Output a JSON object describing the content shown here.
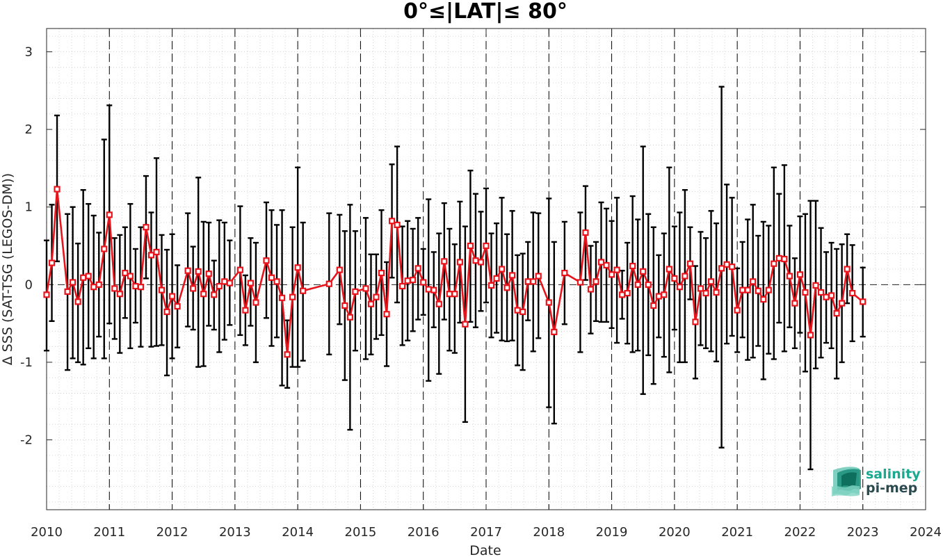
{
  "chart_data": {
    "type": "line",
    "title": "0°≤|LAT|≤ 80°",
    "xlabel": "Date",
    "ylabel": "Δ SSS (SAT-TSG (LEGOS-DM))",
    "xlim": [
      "2010-01",
      "2024-01"
    ],
    "ylim": [
      -2.9,
      3.3
    ],
    "x_ticks": [
      "2010",
      "2011",
      "2012",
      "2013",
      "2014",
      "2015",
      "2016",
      "2017",
      "2018",
      "2019",
      "2020",
      "2021",
      "2022",
      "2023",
      "2024"
    ],
    "y_ticks": [
      "3",
      "2",
      "1",
      "0",
      "-1",
      "-2"
    ],
    "y_tick_values": [
      3,
      2,
      1,
      0,
      -1,
      -2
    ],
    "grid": true,
    "year_separators": [
      "2011",
      "2012",
      "2013",
      "2014",
      "2015",
      "2016",
      "2017",
      "2018",
      "2019",
      "2020",
      "2021",
      "2022",
      "2023"
    ],
    "zero_line": true,
    "series": [
      {
        "color": "#e8141c",
        "errorbar_color": "#000000",
        "marker": "square",
        "points": [
          {
            "x": "2010-01",
            "y": -0.13,
            "lo": -0.85,
            "hi": 0.57
          },
          {
            "x": "2010-02",
            "y": 0.28,
            "lo": -0.47,
            "hi": 1.03
          },
          {
            "x": "2010-03",
            "y": 1.23,
            "lo": 0.3,
            "hi": 2.18
          },
          {
            "x": "2010-05",
            "y": -0.09,
            "lo": -1.1,
            "hi": 0.91
          },
          {
            "x": "2010-06",
            "y": 0.03,
            "lo": -0.95,
            "hi": 1.0
          },
          {
            "x": "2010-07",
            "y": -0.22,
            "lo": -1.0,
            "hi": 0.53
          },
          {
            "x": "2010-08",
            "y": 0.09,
            "lo": -1.03,
            "hi": 1.22
          },
          {
            "x": "2010-09",
            "y": 0.11,
            "lo": -0.82,
            "hi": 1.04
          },
          {
            "x": "2010-10",
            "y": -0.03,
            "lo": -0.95,
            "hi": 0.89
          },
          {
            "x": "2010-11",
            "y": 0.0,
            "lo": -0.67,
            "hi": 0.67
          },
          {
            "x": "2010-12",
            "y": 0.46,
            "lo": -0.95,
            "hi": 1.87
          },
          {
            "x": "2011-01",
            "y": 0.9,
            "lo": -0.5,
            "hi": 2.31
          },
          {
            "x": "2011-02",
            "y": -0.05,
            "lo": -0.7,
            "hi": 0.6
          },
          {
            "x": "2011-03",
            "y": -0.12,
            "lo": -0.88,
            "hi": 0.64
          },
          {
            "x": "2011-04",
            "y": 0.15,
            "lo": -0.43,
            "hi": 0.74
          },
          {
            "x": "2011-05",
            "y": 0.11,
            "lo": -0.82,
            "hi": 1.04
          },
          {
            "x": "2011-06",
            "y": -0.02,
            "lo": -0.49,
            "hi": 0.46
          },
          {
            "x": "2011-07",
            "y": -0.03,
            "lo": -0.8,
            "hi": 0.74
          },
          {
            "x": "2011-08",
            "y": 0.74,
            "lo": 0.08,
            "hi": 1.4
          },
          {
            "x": "2011-09",
            "y": 0.38,
            "lo": -0.8,
            "hi": 0.93
          },
          {
            "x": "2011-10",
            "y": 0.42,
            "lo": -0.79,
            "hi": 1.63
          },
          {
            "x": "2011-11",
            "y": -0.07,
            "lo": -0.78,
            "hi": 0.64
          },
          {
            "x": "2011-12",
            "y": -0.35,
            "lo": -1.17,
            "hi": 0.45
          },
          {
            "x": "2012-01",
            "y": -0.15,
            "lo": -0.95,
            "hi": 0.65
          },
          {
            "x": "2012-02",
            "y": -0.28,
            "lo": -0.81,
            "hi": 0.25
          },
          {
            "x": "2012-04",
            "y": 0.18,
            "lo": -0.54,
            "hi": 0.92
          },
          {
            "x": "2012-05",
            "y": -0.05,
            "lo": -0.58,
            "hi": 0.49
          },
          {
            "x": "2012-06",
            "y": 0.17,
            "lo": -1.06,
            "hi": 1.38
          },
          {
            "x": "2012-07",
            "y": -0.12,
            "lo": -1.05,
            "hi": 0.81
          },
          {
            "x": "2012-08",
            "y": 0.14,
            "lo": -0.53,
            "hi": 0.8
          },
          {
            "x": "2012-09",
            "y": -0.13,
            "lo": -0.58,
            "hi": 0.31
          },
          {
            "x": "2012-10",
            "y": -0.02,
            "lo": -0.87,
            "hi": 0.83
          },
          {
            "x": "2012-11",
            "y": 0.04,
            "lo": -0.71,
            "hi": 0.8
          },
          {
            "x": "2012-12",
            "y": 0.02,
            "lo": -0.52,
            "hi": 0.57
          },
          {
            "x": "2013-02",
            "y": 0.19,
            "lo": -0.65,
            "hi": 1.01
          },
          {
            "x": "2013-03",
            "y": -0.33,
            "lo": -0.78,
            "hi": 0.12
          },
          {
            "x": "2013-04",
            "y": 0.02,
            "lo": -0.53,
            "hi": 0.6
          },
          {
            "x": "2013-05",
            "y": -0.23,
            "lo": -1.0,
            "hi": 0.54
          },
          {
            "x": "2013-07",
            "y": 0.31,
            "lo": -0.43,
            "hi": 1.06
          },
          {
            "x": "2013-08",
            "y": 0.09,
            "lo": -0.79,
            "hi": 0.96
          },
          {
            "x": "2013-09",
            "y": 0.04,
            "lo": -0.68,
            "hi": 0.77
          },
          {
            "x": "2013-10",
            "y": -0.17,
            "lo": -1.3,
            "hi": 0.96
          },
          {
            "x": "2013-11",
            "y": -0.9,
            "lo": -1.33,
            "hi": -0.46
          },
          {
            "x": "2013-12",
            "y": -0.16,
            "lo": -1.06,
            "hi": 0.74
          },
          {
            "x": "2014-01",
            "y": 0.22,
            "lo": -1.06,
            "hi": 1.51
          },
          {
            "x": "2014-02",
            "y": -0.08,
            "lo": -0.98,
            "hi": 0.8
          },
          {
            "x": "2014-07",
            "y": 0.01,
            "lo": -0.9,
            "hi": 0.92
          },
          {
            "x": "2014-09",
            "y": 0.19,
            "lo": -0.51,
            "hi": 0.9
          },
          {
            "x": "2014-10",
            "y": -0.27,
            "lo": -1.23,
            "hi": 0.69
          },
          {
            "x": "2014-11",
            "y": -0.42,
            "lo": -1.87,
            "hi": 1.03
          },
          {
            "x": "2014-12",
            "y": -0.09,
            "lo": -0.85,
            "hi": 0.69
          },
          {
            "x": "2015-02",
            "y": -0.05,
            "lo": -0.96,
            "hi": 0.86
          },
          {
            "x": "2015-03",
            "y": -0.25,
            "lo": -0.9,
            "hi": 0.39
          },
          {
            "x": "2015-04",
            "y": -0.16,
            "lo": -0.7,
            "hi": 0.39
          },
          {
            "x": "2015-05",
            "y": 0.15,
            "lo": -0.65,
            "hi": 0.96
          },
          {
            "x": "2015-06",
            "y": -0.38,
            "lo": -1.05,
            "hi": 0.29
          },
          {
            "x": "2015-07",
            "y": 0.82,
            "lo": 0.09,
            "hi": 1.55
          },
          {
            "x": "2015-08",
            "y": 0.77,
            "lo": -0.23,
            "hi": 1.78
          },
          {
            "x": "2015-09",
            "y": -0.02,
            "lo": -0.78,
            "hi": 0.75
          },
          {
            "x": "2015-10",
            "y": 0.05,
            "lo": -0.72,
            "hi": 0.82
          },
          {
            "x": "2015-11",
            "y": 0.06,
            "lo": -0.6,
            "hi": 0.72
          },
          {
            "x": "2015-12",
            "y": 0.21,
            "lo": -0.45,
            "hi": 0.86
          },
          {
            "x": "2016-01",
            "y": 0.03,
            "lo": -0.39,
            "hi": 0.46
          },
          {
            "x": "2016-02",
            "y": -0.06,
            "lo": -1.24,
            "hi": 1.1
          },
          {
            "x": "2016-03",
            "y": -0.07,
            "lo": -0.55,
            "hi": 0.42
          },
          {
            "x": "2016-04",
            "y": -0.25,
            "lo": -1.15,
            "hi": 0.66
          },
          {
            "x": "2016-05",
            "y": 0.3,
            "lo": -0.45,
            "hi": 1.05
          },
          {
            "x": "2016-06",
            "y": -0.12,
            "lo": -0.85,
            "hi": 0.72
          },
          {
            "x": "2016-07",
            "y": -0.12,
            "lo": -0.88,
            "hi": 0.52
          },
          {
            "x": "2016-08",
            "y": 0.29,
            "lo": -0.49,
            "hi": 1.07
          },
          {
            "x": "2016-09",
            "y": -0.51,
            "lo": -1.77,
            "hi": 0.75
          },
          {
            "x": "2016-10",
            "y": 0.5,
            "lo": -0.48,
            "hi": 1.47
          },
          {
            "x": "2016-11",
            "y": 0.31,
            "lo": -0.55,
            "hi": 1.17
          },
          {
            "x": "2016-12",
            "y": 0.29,
            "lo": -0.34,
            "hi": 0.94
          },
          {
            "x": "2017-01",
            "y": 0.5,
            "lo": -0.23,
            "hi": 1.24
          },
          {
            "x": "2017-02",
            "y": -0.01,
            "lo": -0.68,
            "hi": 0.66
          },
          {
            "x": "2017-03",
            "y": 0.08,
            "lo": -0.62,
            "hi": 0.79
          },
          {
            "x": "2017-04",
            "y": 0.2,
            "lo": -0.72,
            "hi": 1.12
          },
          {
            "x": "2017-05",
            "y": -0.04,
            "lo": -0.73,
            "hi": 0.65
          },
          {
            "x": "2017-06",
            "y": 0.12,
            "lo": -0.72,
            "hi": 0.95
          },
          {
            "x": "2017-07",
            "y": -0.33,
            "lo": -1.04,
            "hi": 0.38
          },
          {
            "x": "2017-08",
            "y": -0.35,
            "lo": -1.1,
            "hi": 0.4
          },
          {
            "x": "2017-09",
            "y": 0.04,
            "lo": -0.46,
            "hi": 0.55
          },
          {
            "x": "2017-10",
            "y": 0.04,
            "lo": -0.86,
            "hi": 0.93
          },
          {
            "x": "2017-11",
            "y": 0.11,
            "lo": -0.69,
            "hi": 0.92
          },
          {
            "x": "2018-01",
            "y": -0.23,
            "lo": -1.58,
            "hi": 1.11
          },
          {
            "x": "2018-02",
            "y": -0.61,
            "lo": -1.79,
            "hi": 0.55
          },
          {
            "x": "2018-04",
            "y": 0.15,
            "lo": -0.51,
            "hi": 0.81
          },
          {
            "x": "2018-07",
            "y": 0.03,
            "lo": -0.87,
            "hi": 0.93
          },
          {
            "x": "2018-08",
            "y": 0.67,
            "lo": 0.06,
            "hi": 1.27
          },
          {
            "x": "2018-09",
            "y": -0.06,
            "lo": -0.63,
            "hi": 0.5
          },
          {
            "x": "2018-10",
            "y": 0.04,
            "lo": -0.47,
            "hi": 0.55
          },
          {
            "x": "2018-11",
            "y": 0.29,
            "lo": -0.48,
            "hi": 1.06
          },
          {
            "x": "2018-12",
            "y": 0.25,
            "lo": -0.48,
            "hi": 0.98
          },
          {
            "x": "2019-01",
            "y": 0.13,
            "lo": -0.56,
            "hi": 0.82
          },
          {
            "x": "2019-02",
            "y": 0.19,
            "lo": -0.75,
            "hi": 1.12
          },
          {
            "x": "2019-03",
            "y": -0.13,
            "lo": -0.44,
            "hi": 0.18
          },
          {
            "x": "2019-04",
            "y": -0.11,
            "lo": -0.76,
            "hi": 0.54
          },
          {
            "x": "2019-05",
            "y": 0.24,
            "lo": -0.87,
            "hi": 1.14
          },
          {
            "x": "2019-06",
            "y": 0.0,
            "lo": -0.85,
            "hi": 0.84
          },
          {
            "x": "2019-07",
            "y": 0.17,
            "lo": -1.41,
            "hi": 1.78
          },
          {
            "x": "2019-08",
            "y": 0.0,
            "lo": -0.91,
            "hi": 0.91
          },
          {
            "x": "2019-09",
            "y": -0.27,
            "lo": -1.28,
            "hi": 0.74
          },
          {
            "x": "2019-10",
            "y": -0.15,
            "lo": -0.68,
            "hi": 0.38
          },
          {
            "x": "2019-11",
            "y": -0.13,
            "lo": -0.93,
            "hi": 0.66
          },
          {
            "x": "2019-12",
            "y": 0.2,
            "lo": -1.13,
            "hi": 1.51
          },
          {
            "x": "2020-01",
            "y": 0.08,
            "lo": -0.58,
            "hi": 0.75
          },
          {
            "x": "2020-02",
            "y": -0.03,
            "lo": -1.0,
            "hi": 0.93
          },
          {
            "x": "2020-03",
            "y": 0.11,
            "lo": -1.0,
            "hi": 1.22
          },
          {
            "x": "2020-04",
            "y": 0.27,
            "lo": -0.19,
            "hi": 0.74
          },
          {
            "x": "2020-05",
            "y": -0.48,
            "lo": -1.21,
            "hi": 0.24
          },
          {
            "x": "2020-06",
            "y": -0.05,
            "lo": -0.78,
            "hi": 0.68
          },
          {
            "x": "2020-07",
            "y": -0.11,
            "lo": -0.82,
            "hi": 0.6
          },
          {
            "x": "2020-08",
            "y": 0.04,
            "lo": -0.86,
            "hi": 0.95
          },
          {
            "x": "2020-09",
            "y": -0.1,
            "lo": -0.99,
            "hi": 0.79
          },
          {
            "x": "2020-10",
            "y": 0.21,
            "lo": -2.1,
            "hi": 2.55
          },
          {
            "x": "2020-11",
            "y": 0.26,
            "lo": -0.76,
            "hi": 1.29
          },
          {
            "x": "2020-12",
            "y": 0.23,
            "lo": -0.66,
            "hi": 1.12
          },
          {
            "x": "2021-01",
            "y": -0.33,
            "lo": -0.87,
            "hi": 0.21
          },
          {
            "x": "2021-02",
            "y": -0.07,
            "lo": -0.68,
            "hi": 0.55
          },
          {
            "x": "2021-03",
            "y": -0.07,
            "lo": -0.97,
            "hi": 0.84
          },
          {
            "x": "2021-04",
            "y": 0.04,
            "lo": -0.94,
            "hi": 1.03
          },
          {
            "x": "2021-05",
            "y": -0.08,
            "lo": -0.79,
            "hi": 0.63
          },
          {
            "x": "2021-06",
            "y": -0.19,
            "lo": -1.22,
            "hi": 0.81
          },
          {
            "x": "2021-07",
            "y": -0.07,
            "lo": -0.89,
            "hi": 0.76
          },
          {
            "x": "2021-08",
            "y": 0.27,
            "lo": -0.96,
            "hi": 1.51
          },
          {
            "x": "2021-09",
            "y": 0.34,
            "lo": -0.49,
            "hi": 1.17
          },
          {
            "x": "2021-10",
            "y": 0.33,
            "lo": -0.86,
            "hi": 1.54
          },
          {
            "x": "2021-11",
            "y": 0.11,
            "lo": -0.55,
            "hi": 0.76
          },
          {
            "x": "2021-12",
            "y": -0.24,
            "lo": -0.82,
            "hi": 0.34
          },
          {
            "x": "2022-01",
            "y": 0.13,
            "lo": -0.62,
            "hi": 0.88
          },
          {
            "x": "2022-02",
            "y": -0.1,
            "lo": -1.12,
            "hi": 0.91
          },
          {
            "x": "2022-03",
            "y": -0.65,
            "lo": -2.38,
            "hi": 1.08
          },
          {
            "x": "2022-04",
            "y": -0.01,
            "lo": -1.08,
            "hi": 1.08
          },
          {
            "x": "2022-05",
            "y": -0.1,
            "lo": -0.94,
            "hi": 0.73
          },
          {
            "x": "2022-06",
            "y": -0.16,
            "lo": -0.75,
            "hi": 0.42
          },
          {
            "x": "2022-07",
            "y": -0.14,
            "lo": -0.82,
            "hi": 0.54
          },
          {
            "x": "2022-08",
            "y": -0.37,
            "lo": -1.21,
            "hi": 0.46
          },
          {
            "x": "2022-09",
            "y": -0.24,
            "lo": -1.0,
            "hi": 0.52
          },
          {
            "x": "2022-10",
            "y": 0.2,
            "lo": -0.24,
            "hi": 0.65
          },
          {
            "x": "2022-11",
            "y": -0.11,
            "lo": -0.73,
            "hi": 0.51
          },
          {
            "x": "2023-01",
            "y": -0.22,
            "lo": -0.67,
            "hi": 0.22
          }
        ]
      }
    ]
  },
  "logo": {
    "line1": "salinity",
    "line2": "pi-mep",
    "color_primary": "#1aa98f",
    "color_secondary": "#2b4a50"
  }
}
